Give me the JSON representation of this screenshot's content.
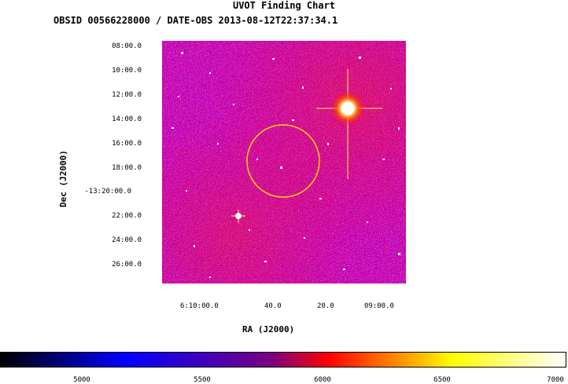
{
  "chart": {
    "title": "UVOT Finding Chart",
    "obs_line": "OBSID 00566228000 / DATE-OBS 2013-08-12T22:37:34.1",
    "xlabel": "RA (J2000)",
    "ylabel": "Dec (J2000)",
    "y_ticks": [
      "08:00.0",
      "10:00.0",
      "12:00.0",
      "14:00.0",
      "16:00.0",
      "18:00.0",
      "-13:20:00.0",
      "22:00.0",
      "24:00.0",
      "26:00.0"
    ],
    "x_ticks": [
      "6:10:00.0",
      "40.0",
      "20.0",
      "09:00.0"
    ],
    "colorbar_ticks": [
      "5000",
      "5500",
      "6000",
      "6500",
      "7000"
    ]
  },
  "colors": {
    "cmap": [
      "#000000",
      "#0000ff",
      "#ff0000",
      "#ffff00",
      "#ffffff"
    ],
    "circle": "#ffd700"
  }
}
